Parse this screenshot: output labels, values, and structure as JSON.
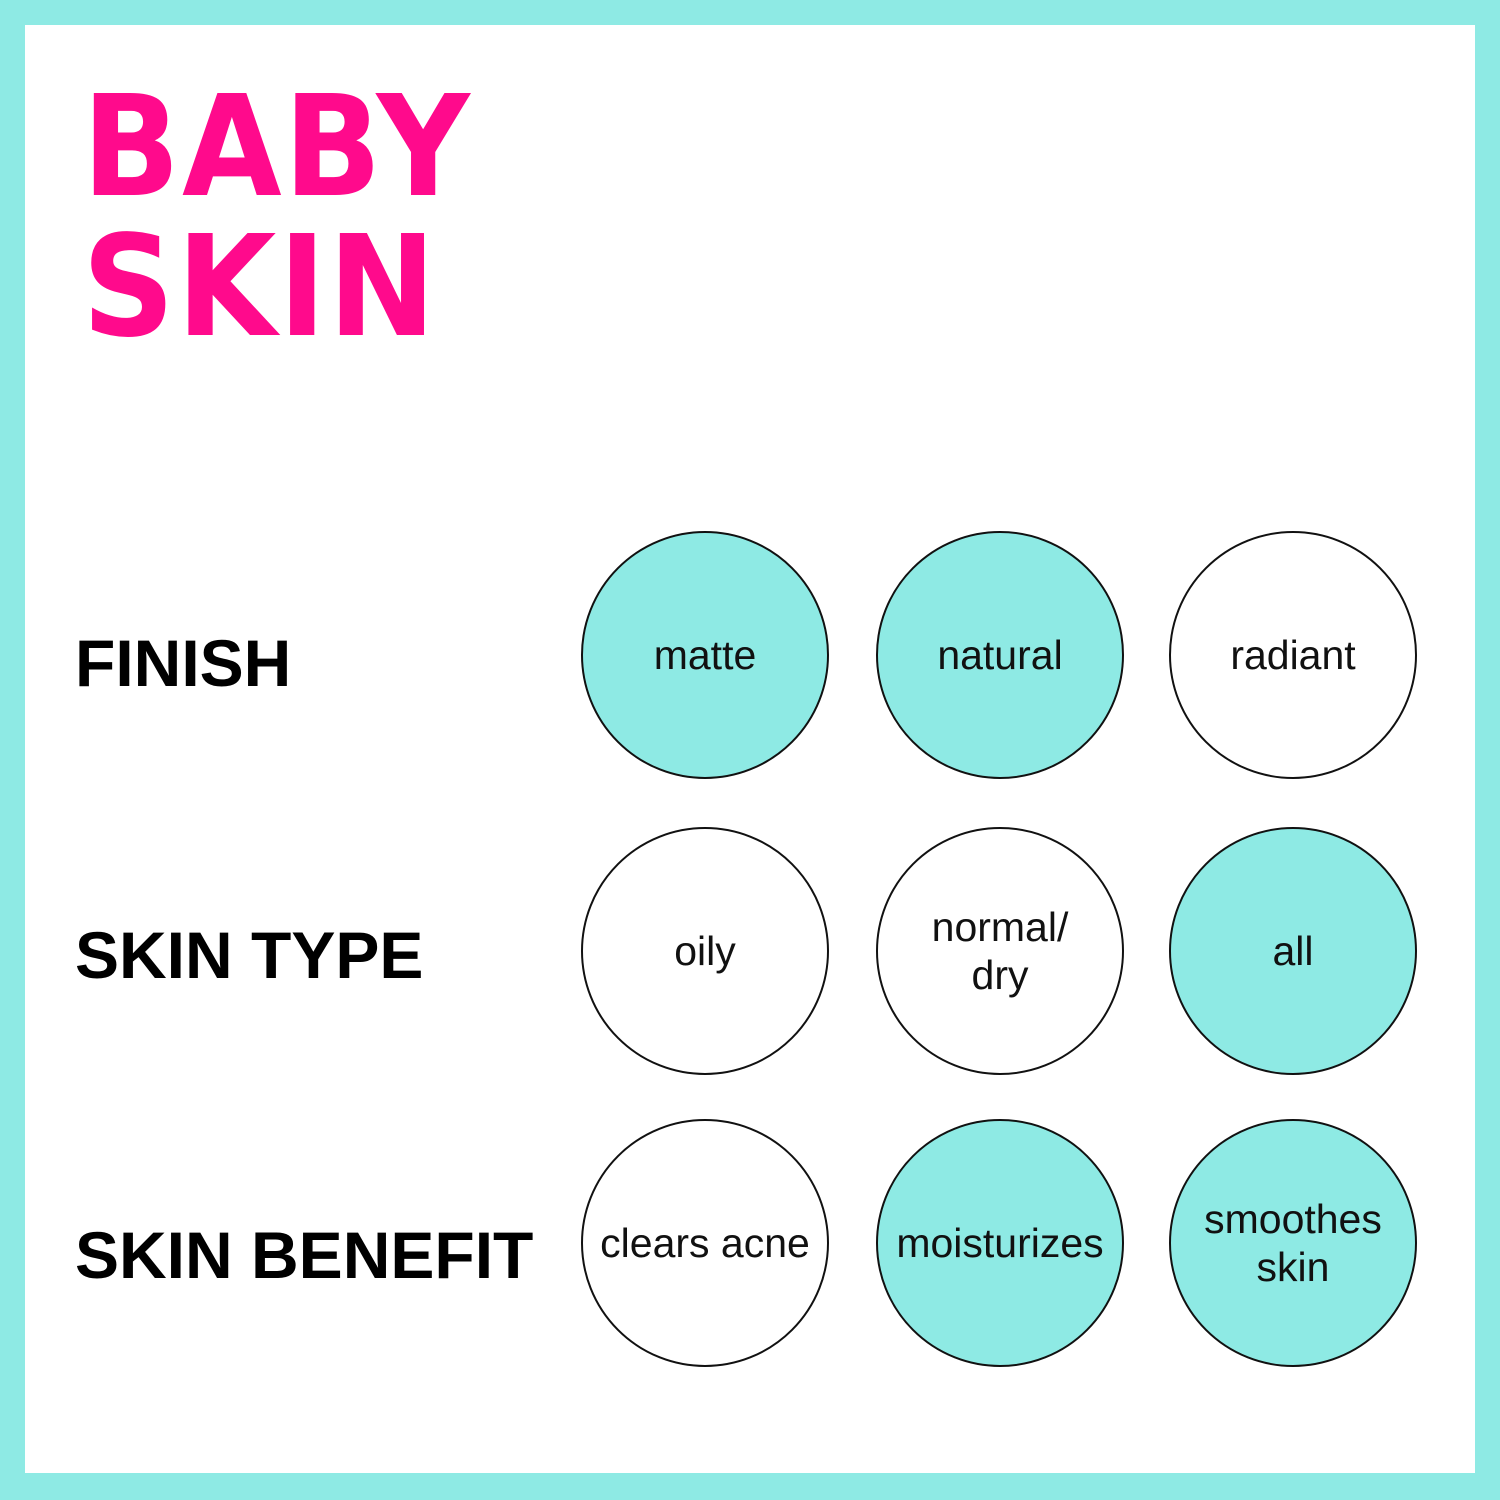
{
  "brand": {
    "line1": "BABY",
    "line2": "SKIN",
    "color": "#ff0a8c"
  },
  "accent_color": "#8eeae4",
  "rows": [
    {
      "label": "FINISH",
      "options": [
        {
          "text": "matte",
          "selected": true
        },
        {
          "text": "natural",
          "selected": true
        },
        {
          "text": "radiant",
          "selected": false
        }
      ]
    },
    {
      "label": "SKIN TYPE",
      "options": [
        {
          "text": "oily",
          "selected": false
        },
        {
          "text": "normal/\ndry",
          "selected": false
        },
        {
          "text": "all",
          "selected": true
        }
      ]
    },
    {
      "label": "SKIN BENEFIT",
      "options": [
        {
          "text": "clears acne",
          "selected": false
        },
        {
          "text": "moisturizes",
          "selected": true
        },
        {
          "text": "smoothes\nskin",
          "selected": true
        }
      ]
    }
  ]
}
